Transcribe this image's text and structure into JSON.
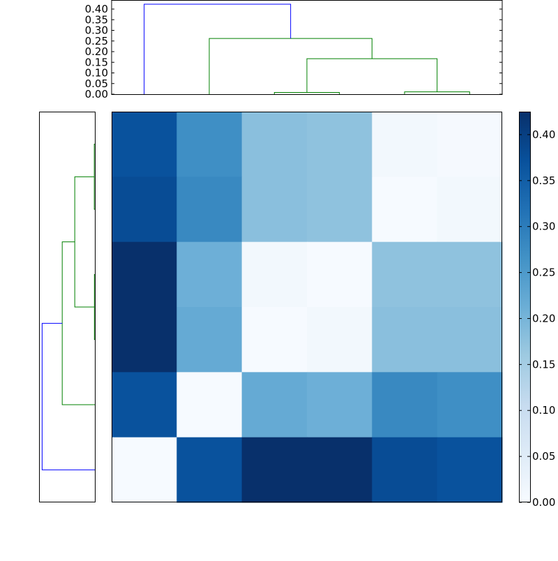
{
  "chart_data": {
    "type": "heatmap",
    "title": "",
    "description": "Clustered heatmap (6x6 distance matrix) with top and left dendrograms and a colorbar",
    "colormap": "Blues",
    "matrix": [
      [
        0.37,
        0.27,
        0.18,
        0.175,
        0.01,
        0.005
      ],
      [
        0.38,
        0.28,
        0.18,
        0.175,
        0.003,
        0.01
      ],
      [
        0.425,
        0.21,
        0.01,
        0.003,
        0.175,
        0.175
      ],
      [
        0.425,
        0.22,
        0.003,
        0.01,
        0.18,
        0.18
      ],
      [
        0.37,
        0.003,
        0.22,
        0.21,
        0.28,
        0.27
      ],
      [
        0.003,
        0.37,
        0.425,
        0.425,
        0.38,
        0.37
      ]
    ],
    "colorbar": {
      "min": 0.0,
      "max": 0.425,
      "ticks": [
        "0.00",
        "0.05",
        "0.10",
        "0.15",
        "0.20",
        "0.25",
        "0.30",
        "0.35",
        "0.40"
      ],
      "tick_values": [
        0,
        0.05,
        0.1,
        0.15,
        0.2,
        0.25,
        0.3,
        0.35,
        0.4
      ]
    },
    "top_dendrogram": {
      "yticks": [
        "0.00",
        "0.05",
        "0.10",
        "0.15",
        "0.20",
        "0.25",
        "0.30",
        "0.35",
        "0.40"
      ],
      "ylim": [
        0,
        0.44
      ],
      "links": [
        {
          "left_leaf_x": 3,
          "right_leaf_x": 4,
          "height": 0.008,
          "color": "#008000"
        },
        {
          "left_leaf_x": 5,
          "right_leaf_x": 6,
          "height": 0.011,
          "color": "#008000"
        },
        {
          "left_leaf_x": 3.5,
          "right_leaf_x": 5.5,
          "height": 0.167,
          "color": "#008000"
        },
        {
          "left_leaf_x": 2,
          "right_leaf_x": 4.5,
          "height": 0.262,
          "color": "#008000"
        },
        {
          "left_leaf_x": 1,
          "right_leaf_x": 3.25,
          "height": 0.423,
          "color": "#0000ff"
        }
      ]
    },
    "left_dendrogram": {
      "xlim": [
        0.44,
        0
      ],
      "links": [
        {
          "top_leaf": 1,
          "bottom_leaf": 2,
          "height": 0.005,
          "color": "#008000"
        },
        {
          "top_leaf": 3,
          "bottom_leaf": 4,
          "height": 0.004,
          "color": "#008000"
        },
        {
          "top_leaf": 1.5,
          "bottom_leaf": 3.5,
          "height": 0.16,
          "color": "#008000"
        },
        {
          "top_leaf": 2.5,
          "bottom_leaf": 5,
          "height": 0.26,
          "color": "#008000"
        },
        {
          "top_leaf": 3.75,
          "bottom_leaf": 6,
          "height": 0.42,
          "color": "#0000ff"
        }
      ]
    },
    "grid": false,
    "legend_position": "right (colorbar)"
  },
  "colors": {
    "cluster_1": "#008000",
    "above_threshold": "#0000ff",
    "axis": "#000000"
  }
}
